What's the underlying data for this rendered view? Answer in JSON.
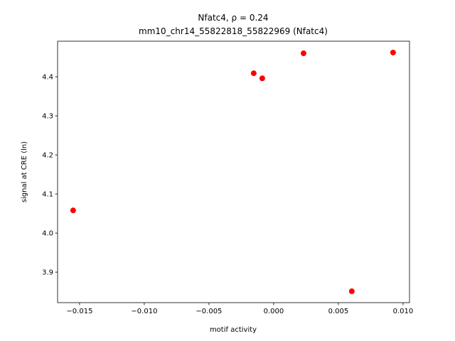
{
  "chart_data": {
    "type": "scatter",
    "title": "Nfatc4, ρ = 0.24",
    "subtitle": "mm10_chr14_55822818_55822969 (Nfatc4)",
    "x_label": "motif activity",
    "y_label": "signal at CRE (ln)",
    "color": "#ff0000",
    "x": [
      -0.0155,
      -0.00154,
      -0.00088,
      0.00231,
      0.00923,
      0.00604
    ],
    "values": [
      4.058,
      4.409,
      4.396,
      4.46,
      4.462,
      3.851
    ],
    "xlim": [
      -0.0167,
      0.0105
    ],
    "ylim": [
      3.822,
      4.491
    ],
    "xticks": [
      {
        "value": -0.015,
        "label": "−0.015"
      },
      {
        "value": -0.01,
        "label": "−0.010"
      },
      {
        "value": -0.005,
        "label": "−0.005"
      },
      {
        "value": 0,
        "label": "0.000"
      },
      {
        "value": 0.005,
        "label": "0.005"
      },
      {
        "value": 0.01,
        "label": "0.010"
      }
    ],
    "yticks": [
      3.9,
      {
        "value": 4,
        "label": "4.0"
      },
      4.1,
      4.2,
      4.3,
      4.4
    ]
  }
}
